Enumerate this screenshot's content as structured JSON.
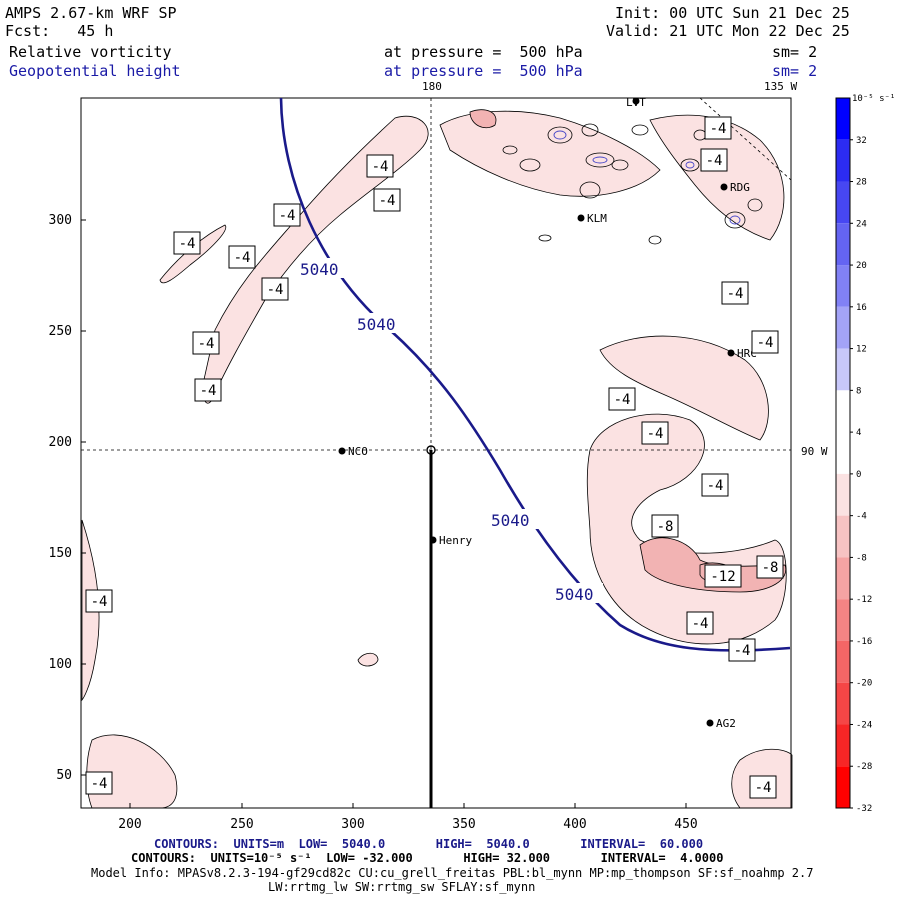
{
  "header": {
    "model": "AMPS 2.67-km WRF SP",
    "fcst": "Fcst:   45 h",
    "init": "Init: 00 UTC Sun 21 Dec 25",
    "valid": "Valid: 21 UTC Mon 22 Dec 25",
    "field1": "Relative vorticity",
    "field2": "Geopotential height",
    "pressure1": "at pressure =  500 hPa",
    "pressure2": "at pressure =  500 hPa",
    "sm1": "sm= 2",
    "sm2": "sm= 2"
  },
  "map": {
    "x_ticks": [
      "200",
      "250",
      "300",
      "350",
      "400",
      "450"
    ],
    "y_ticks": [
      "300",
      "250",
      "200",
      "150",
      "100",
      "50"
    ],
    "lon_180": "180",
    "lon_135w": "135 W",
    "lat_90w": "90 W",
    "stations": [
      {
        "name": "LVT"
      },
      {
        "name": "KLM"
      },
      {
        "name": "RDG"
      },
      {
        "name": "HRC"
      },
      {
        "name": "NCO"
      },
      {
        "name": "Henry"
      },
      {
        "name": "AG2"
      }
    ],
    "height_labels": [
      "5040",
      "5040",
      "5040",
      "5040"
    ],
    "vort_labels": [
      "-4",
      "-4",
      "-4",
      "-4",
      "-4",
      "-4",
      "-4",
      "-4",
      "-4",
      "-4",
      "-4",
      "-4",
      "-4",
      "-4",
      "-4",
      "-4",
      "-4",
      "-4",
      "-4",
      "-4",
      "-8",
      "-12",
      "-8"
    ]
  },
  "colorbar": {
    "unit": "10⁻⁵ s⁻¹",
    "labels": [
      "32",
      "28",
      "24",
      "20",
      "16",
      "12",
      "8",
      "4",
      "0",
      "-4",
      "-8",
      "-12",
      "-16",
      "-20",
      "-24",
      "-28",
      "-32"
    ],
    "colors": [
      "#0000ff",
      "#2c2cf2",
      "#4747f2",
      "#6464f2",
      "#8181f5",
      "#a3a3f7",
      "#c8c8fa",
      "#ffffff",
      "#ffffff",
      "#fbe2e2",
      "#f7c3c3",
      "#f5a3a3",
      "#f48484",
      "#f46666",
      "#f54646",
      "#f72626",
      "#ff0000"
    ]
  },
  "footer": {
    "line1": "CONTOURS:  UNITS=m  LOW=  5040.0       HIGH=  5040.0       INTERVAL=  60.000",
    "line2": "CONTOURS:  UNITS=10⁻⁵ s⁻¹  LOW= -32.000       HIGH= 32.000       INTERVAL=  4.0000",
    "line3": "Model Info: MPASv8.2.3-194-gf29cd82c CU:cu_grell_freitas PBL:bl_mynn MP:mp_thompson SF:sf_noahmp 2.7",
    "line4": "LW:rrtmg_lw SW:rrtmg_sw SFLAY:sf_mynn"
  }
}
